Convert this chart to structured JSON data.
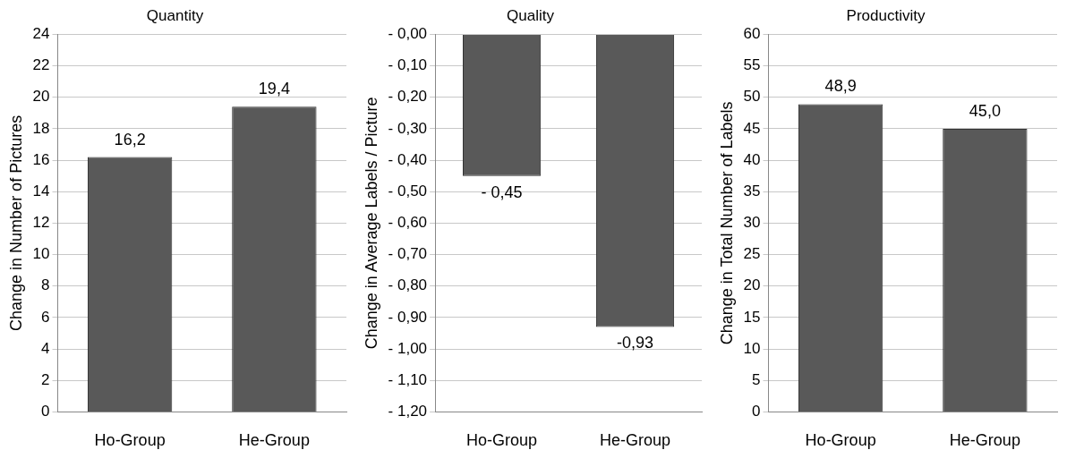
{
  "chart_data": [
    {
      "type": "bar",
      "title": "Quantity",
      "ylabel": "Change in Number of Pictures",
      "categories": [
        "Ho-Group",
        "He-Group"
      ],
      "values": [
        16.2,
        19.4
      ],
      "value_labels": [
        "16,2",
        "19,4"
      ],
      "color": "#595959",
      "ylim": [
        0,
        24
      ],
      "yticks": [
        0,
        2,
        4,
        6,
        8,
        10,
        12,
        14,
        16,
        18,
        20,
        22,
        24
      ],
      "grid": "y"
    },
    {
      "type": "bar",
      "title": "Quality",
      "ylabel": "Change in Average Labels / Picture",
      "categories": [
        "Ho-Group",
        "He-Group"
      ],
      "values": [
        -0.45,
        -0.93
      ],
      "value_labels": [
        "- 0,45",
        "-0,93"
      ],
      "color": "#595959",
      "ylim": [
        -1.2,
        0
      ],
      "yticks": [
        {
          "value": 0,
          "label": "- 0,00"
        },
        {
          "value": -0.1,
          "label": "- 0,10"
        },
        {
          "value": -0.2,
          "label": "- 0,20"
        },
        {
          "value": -0.3,
          "label": "- 0,30"
        },
        {
          "value": -0.4,
          "label": "- 0,40"
        },
        {
          "value": -0.5,
          "label": "- 0,50"
        },
        {
          "value": -0.6,
          "label": "- 0,60"
        },
        {
          "value": -0.7,
          "label": "- 0,70"
        },
        {
          "value": -0.8,
          "label": "- 0,80"
        },
        {
          "value": -0.9,
          "label": "- 0,90"
        },
        {
          "value": -1,
          "label": "- 1,00"
        },
        {
          "value": -1.1,
          "label": "- 1,10"
        },
        {
          "value": -1.2,
          "label": "- 1,20"
        }
      ],
      "grid": "y"
    },
    {
      "type": "bar",
      "title": "Productivity",
      "ylabel": "Change in Total Number of Labels",
      "categories": [
        "Ho-Group",
        "He-Group"
      ],
      "values": [
        48.9,
        45.0
      ],
      "value_labels": [
        "48,9",
        "45,0"
      ],
      "color": "#595959",
      "ylim": [
        0,
        60
      ],
      "yticks": [
        0,
        5,
        10,
        15,
        20,
        25,
        30,
        35,
        40,
        45,
        50,
        55,
        60
      ],
      "grid": "y"
    }
  ]
}
